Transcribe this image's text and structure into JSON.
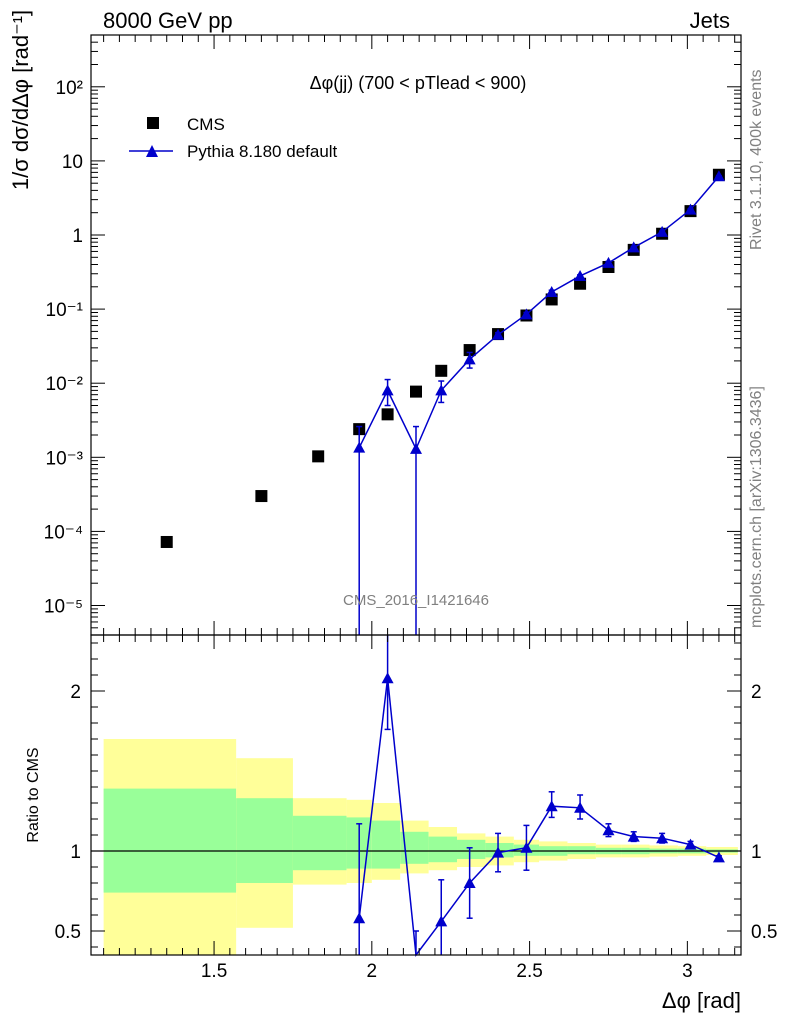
{
  "header": {
    "left": "8000 GeV pp",
    "right": "Jets",
    "side_top": "Rivet 3.1.10,  400k events",
    "side_bottom": "mcplots.cern.ch [arXiv:1306.3436]",
    "watermark": "CMS_2016_I1421646"
  },
  "colors": {
    "cms": "#000000",
    "pythia": "#0000cc",
    "band_stat": "#99ff99",
    "band_total": "#ffff99"
  },
  "chart_data": [
    {
      "type": "scatter",
      "title": "Δφ(jj) (700 < pTlead <  900)",
      "ylabel": "1/σ dσ/dΔφ [rad⁻¹]",
      "yscale": "log",
      "ylim": [
        4e-06,
        500
      ],
      "xlim": [
        1.11,
        3.17
      ],
      "yticks": [
        "10⁻⁵",
        "10⁻⁴",
        "10⁻³",
        "10⁻²",
        "10⁻¹",
        "1",
        "10",
        "10²"
      ],
      "legend_position": "top-left",
      "legend": [
        "CMS",
        "Pythia 8.180 default"
      ],
      "series": [
        {
          "name": "CMS",
          "marker": "square",
          "x": [
            1.35,
            1.65,
            1.83,
            1.96,
            2.05,
            2.14,
            2.22,
            2.31,
            2.4,
            2.49,
            2.57,
            2.66,
            2.75,
            2.83,
            2.92,
            3.01,
            3.1
          ],
          "y": [
            7.2e-05,
            0.0003,
            0.00103,
            0.0024,
            0.0038,
            0.0077,
            0.0147,
            0.028,
            0.046,
            0.082,
            0.135,
            0.22,
            0.37,
            0.63,
            1.04,
            2.1,
            6.5
          ]
        },
        {
          "name": "Pythia 8.180 default",
          "marker": "triangle",
          "x": [
            1.96,
            2.05,
            2.14,
            2.22,
            2.31,
            2.4,
            2.49,
            2.57,
            2.66,
            2.75,
            2.83,
            2.92,
            3.01,
            3.1
          ],
          "y": [
            0.00135,
            0.008,
            0.0013,
            0.008,
            0.021,
            0.045,
            0.085,
            0.17,
            0.28,
            0.42,
            0.68,
            1.1,
            2.2,
            6.2
          ],
          "y_low": [
            1e-09,
            0.005,
            1e-09,
            0.0055,
            0.016,
            0.042,
            0.08,
            0.16,
            0.27,
            0.4,
            0.66,
            1.07,
            2.15,
            6.1
          ],
          "y_high": [
            0.0026,
            0.0112,
            0.0026,
            0.0107,
            0.026,
            0.048,
            0.09,
            0.18,
            0.29,
            0.44,
            0.7,
            1.13,
            2.25,
            6.3
          ]
        }
      ]
    },
    {
      "type": "line",
      "xlabel": "Δφ [rad]",
      "ylabel": "Ratio to CMS",
      "ylim": [
        0.35,
        2.35
      ],
      "xlim": [
        1.11,
        3.17
      ],
      "xticks": [
        "1.5",
        "2",
        "2.5",
        "3"
      ],
      "yticks": [
        "0.5",
        "1",
        "2"
      ],
      "bands": [
        {
          "x0": 1.15,
          "x1": 1.57,
          "stat": [
            0.74,
            1.39
          ],
          "total": [
            0.0,
            1.7
          ]
        },
        {
          "x0": 1.57,
          "x1": 1.75,
          "stat": [
            0.8,
            1.33
          ],
          "total": [
            0.52,
            1.58
          ]
        },
        {
          "x0": 1.75,
          "x1": 1.92,
          "stat": [
            0.88,
            1.22
          ],
          "total": [
            0.79,
            1.33
          ]
        },
        {
          "x0": 1.92,
          "x1": 2.0,
          "stat": [
            0.89,
            1.21
          ],
          "total": [
            0.8,
            1.32
          ]
        },
        {
          "x0": 2.0,
          "x1": 2.09,
          "stat": [
            0.89,
            1.19
          ],
          "total": [
            0.82,
            1.3
          ]
        },
        {
          "x0": 2.09,
          "x1": 2.18,
          "stat": [
            0.92,
            1.12
          ],
          "total": [
            0.86,
            1.19
          ]
        },
        {
          "x0": 2.18,
          "x1": 2.27,
          "stat": [
            0.93,
            1.09
          ],
          "total": [
            0.88,
            1.15
          ]
        },
        {
          "x0": 2.27,
          "x1": 2.36,
          "stat": [
            0.95,
            1.07
          ],
          "total": [
            0.9,
            1.11
          ]
        },
        {
          "x0": 2.36,
          "x1": 2.45,
          "stat": [
            0.96,
            1.05
          ],
          "total": [
            0.91,
            1.09
          ]
        },
        {
          "x0": 2.45,
          "x1": 2.53,
          "stat": [
            0.97,
            1.04
          ],
          "total": [
            0.93,
            1.07
          ]
        },
        {
          "x0": 2.53,
          "x1": 2.62,
          "stat": [
            0.97,
            1.03
          ],
          "total": [
            0.94,
            1.06
          ]
        },
        {
          "x0": 2.62,
          "x1": 2.71,
          "stat": [
            0.98,
            1.03
          ],
          "total": [
            0.95,
            1.05
          ]
        },
        {
          "x0": 2.71,
          "x1": 2.79,
          "stat": [
            0.98,
            1.02
          ],
          "total": [
            0.96,
            1.04
          ]
        },
        {
          "x0": 2.79,
          "x1": 2.88,
          "stat": [
            0.98,
            1.02
          ],
          "total": [
            0.96,
            1.04
          ]
        },
        {
          "x0": 2.88,
          "x1": 2.97,
          "stat": [
            0.985,
            1.015
          ],
          "total": [
            0.965,
            1.035
          ]
        },
        {
          "x0": 2.97,
          "x1": 3.06,
          "stat": [
            0.985,
            1.015
          ],
          "total": [
            0.97,
            1.03
          ]
        },
        {
          "x0": 3.06,
          "x1": 3.16,
          "stat": [
            0.99,
            1.01
          ],
          "total": [
            0.975,
            1.025
          ]
        }
      ],
      "series": [
        {
          "name": "Pythia 8.180 default",
          "x": [
            1.96,
            2.05,
            2.14,
            2.22,
            2.31,
            2.4,
            2.49,
            2.57,
            2.66,
            2.75,
            2.83,
            2.92,
            3.01,
            3.1
          ],
          "y": [
            0.58,
            2.08,
            0.18,
            0.56,
            0.8,
            0.99,
            1.02,
            1.28,
            1.27,
            1.13,
            1.09,
            1.08,
            1.04,
            0.96
          ],
          "y_low": [
            0.0,
            1.76,
            0.0,
            0.31,
            0.58,
            0.87,
            0.88,
            1.21,
            1.2,
            1.09,
            1.06,
            1.05,
            1.02,
            0.95
          ],
          "y_high": [
            1.17,
            2.35,
            0.5,
            0.82,
            1.02,
            1.11,
            1.16,
            1.37,
            1.35,
            1.17,
            1.12,
            1.11,
            1.06,
            0.97
          ]
        }
      ]
    }
  ]
}
